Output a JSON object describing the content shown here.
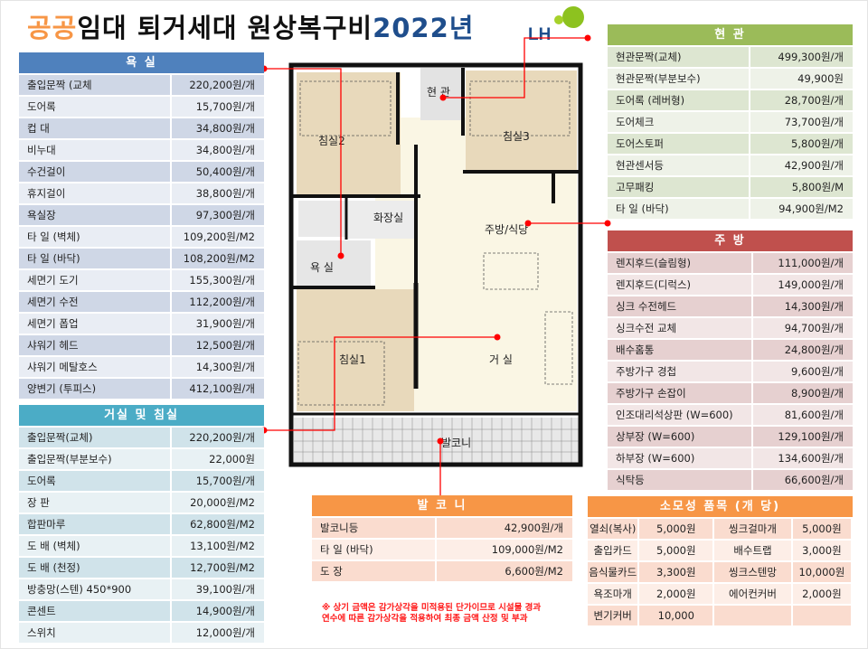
{
  "title": {
    "part1": "공공",
    "part2": "임대 퇴거세대 원상복구비",
    "part3": "2022년"
  },
  "logo": {
    "text": "LH",
    "colors": {
      "text": "#1f4e8c",
      "leaf": "#8dc21f"
    }
  },
  "colors": {
    "bath": "#4f81bd",
    "living": "#4bacc6",
    "entrance": "#9bbb59",
    "kitchen": "#c0504d",
    "balcony": "#f79646",
    "consumable": "#f79646",
    "callout": "#ff0000"
  },
  "bathroom": {
    "header": "욕    실",
    "rows": [
      [
        "출입문짝 (교체",
        "220,200원/개"
      ],
      [
        "도어록",
        "15,700원/개"
      ],
      [
        "컵    대",
        "34,800원/개"
      ],
      [
        "비누대",
        "34,800원/개"
      ],
      [
        "수건걸이",
        "50,400원/개"
      ],
      [
        "휴지걸이",
        "38,800원/개"
      ],
      [
        "욕실장",
        "97,300원/개"
      ],
      [
        "타    일 (벽체)",
        "109,200원/M2"
      ],
      [
        "타    일 (바닥)",
        "108,200원/M2"
      ],
      [
        "세면기 도기",
        "155,300원/개"
      ],
      [
        "세면기 수전",
        "112,200원/개"
      ],
      [
        "세면기 폽업",
        "31,900원/개"
      ],
      [
        "샤워기 헤드",
        "12,500원/개"
      ],
      [
        "샤워기 메탈호스",
        "14,300원/개"
      ],
      [
        "양변기 (투피스)",
        "412,100원/개"
      ]
    ]
  },
  "living": {
    "header": "거실 및 침실",
    "rows": [
      [
        "출입문짝(교체)",
        "220,200원/개"
      ],
      [
        "출입문짝(부분보수)",
        "22,000원"
      ],
      [
        "도어록",
        "15,700원/개"
      ],
      [
        "장    판",
        "20,000원/M2"
      ],
      [
        "합판마루",
        "62,800원/M2"
      ],
      [
        "도    배 (벽체)",
        "13,100원/M2"
      ],
      [
        "도    배 (천정)",
        "12,700원/M2"
      ],
      [
        "방충망(스텐) 450*900",
        "39,100원/개"
      ],
      [
        "콘센트",
        "14,900원/개"
      ],
      [
        "스위치",
        "12,000원/개"
      ]
    ]
  },
  "entrance": {
    "header": "현    관",
    "rows": [
      [
        "현관문짝(교체)",
        "499,300원/개"
      ],
      [
        "현관문짝(부분보수)",
        "49,900원"
      ],
      [
        "도어록 (레버형)",
        "28,700원/개"
      ],
      [
        "도어체크",
        "73,700원/개"
      ],
      [
        "도어스토퍼",
        "5,800원/개"
      ],
      [
        "현관센서등",
        "42,900원/개"
      ],
      [
        "고무패킹",
        "5,800원/M"
      ],
      [
        "타    일 (바닥)",
        "94,900원/M2"
      ]
    ]
  },
  "kitchen": {
    "header": "주    방",
    "rows": [
      [
        "렌지후드(슬림형)",
        "111,000원/개"
      ],
      [
        "렌지후드(디럭스)",
        "149,000원/개"
      ],
      [
        "싱크 수전헤드",
        "14,300원/개"
      ],
      [
        "싱크수전 교체",
        "94,700원/개"
      ],
      [
        "배수홈통",
        "24,800원/개"
      ],
      [
        "주방가구 경첩",
        "9,600원/개"
      ],
      [
        "주방가구 손잡이",
        "8,900원/개"
      ],
      [
        "인조대리석상판 (W=600)",
        "81,600원/개"
      ],
      [
        "상부장 (W=600)",
        "129,100원/개"
      ],
      [
        "하부장 (W=600)",
        "134,600원/개"
      ],
      [
        "식탁등",
        "66,600원/개"
      ]
    ]
  },
  "balcony": {
    "header": "발 코 니",
    "rows": [
      [
        "발코니등",
        "42,900원/개"
      ],
      [
        "타    일 (바닥)",
        "109,000원/M2"
      ],
      [
        "도    장",
        "6,600원/M2"
      ]
    ]
  },
  "consumable": {
    "header": "소모성 품목 (개 당)",
    "rows": [
      [
        "열쇠(복사)",
        "5,000원",
        "씽크걸마개",
        "5,000원"
      ],
      [
        "출입카드",
        "5,000원",
        "배수트랩",
        "3,000원"
      ],
      [
        "음식물카드",
        "3,300원",
        "씽크스텐망",
        "10,000원"
      ],
      [
        "욕조마개",
        "2,000원",
        "에어컨커버",
        "2,000원"
      ],
      [
        "변기커버",
        "10,000",
        "",
        ""
      ]
    ]
  },
  "note": {
    "line1": "※ 상기 금액은 감가상각을 미적용된 단가이므로 시설물 경과",
    "line2": "연수에 따른 감가상각을 적용하여 최종 금액 산정 및 부과"
  },
  "plan": {
    "rooms": {
      "bed2": "침실2",
      "entrance": "현 관",
      "bed3": "침실3",
      "toilet": "화장실",
      "bath": "욕 실",
      "kitchen": "주방/식당",
      "bed1": "침실1",
      "living": "거 실",
      "balcony": "발코니"
    }
  }
}
